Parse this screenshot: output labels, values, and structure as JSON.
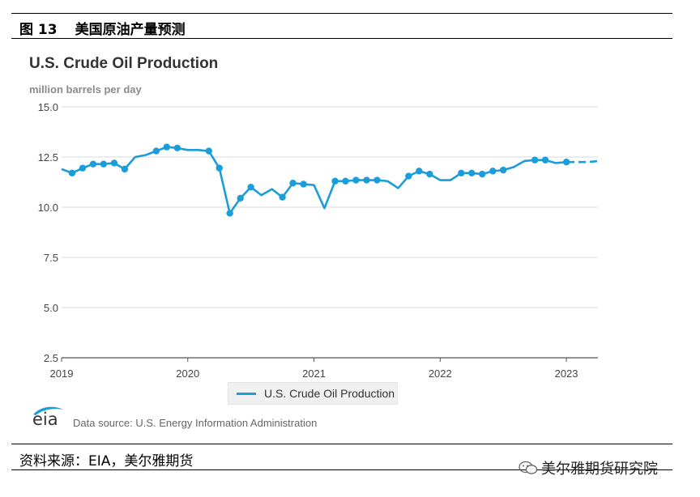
{
  "figure": {
    "number": "图 13",
    "title": "美国原油产量预测"
  },
  "chart_data": {
    "type": "line",
    "title": "U.S. Crude Oil Production",
    "subtitle": "million barrels per day",
    "ylim": [
      2.5,
      15.0
    ],
    "yticks": [
      "2.5",
      "5.0",
      "7.5",
      "10.0",
      "12.5",
      "15.0"
    ],
    "ytick_values": [
      2.5,
      5.0,
      7.5,
      10.0,
      12.5,
      15.0
    ],
    "xticks": [
      "2019",
      "2020",
      "2021",
      "2022",
      "2023"
    ],
    "xtick_values": [
      2019,
      2020,
      2021,
      2022,
      2023
    ],
    "xlim": [
      2019,
      2023.25
    ],
    "grid": true,
    "legend_position": "bottom-center",
    "colors": {
      "series": "#1a9dd9",
      "grid": "#d9d9d9",
      "axis": "#555555"
    },
    "forecast_start": 2022.917,
    "series": [
      {
        "name": "U.S. Crude Oil Production",
        "x": [
          2019.0,
          2019.083,
          2019.167,
          2019.25,
          2019.333,
          2019.417,
          2019.5,
          2019.583,
          2019.667,
          2019.75,
          2019.833,
          2019.917,
          2020.0,
          2020.083,
          2020.167,
          2020.25,
          2020.333,
          2020.417,
          2020.5,
          2020.583,
          2020.667,
          2020.75,
          2020.833,
          2020.917,
          2021.0,
          2021.083,
          2021.167,
          2021.25,
          2021.333,
          2021.417,
          2021.5,
          2021.583,
          2021.667,
          2021.75,
          2021.833,
          2021.917,
          2022.0,
          2022.083,
          2022.167,
          2022.25,
          2022.333,
          2022.417,
          2022.5,
          2022.583,
          2022.667,
          2022.75,
          2022.833,
          2022.917,
          2023.0,
          2023.083,
          2023.167,
          2023.25
        ],
        "y": [
          11.9,
          11.7,
          11.95,
          12.15,
          12.15,
          12.2,
          11.9,
          12.5,
          12.6,
          12.8,
          13.0,
          12.95,
          12.85,
          12.85,
          12.8,
          11.95,
          9.7,
          10.45,
          11.0,
          10.6,
          10.9,
          10.5,
          11.2,
          11.15,
          11.1,
          9.95,
          11.3,
          11.3,
          11.35,
          11.35,
          11.35,
          11.3,
          10.95,
          11.55,
          11.8,
          11.65,
          11.35,
          11.35,
          11.7,
          11.7,
          11.65,
          11.8,
          11.85,
          12.0,
          12.3,
          12.35,
          12.35,
          12.2,
          12.25,
          12.25,
          12.25,
          12.3
        ],
        "markers_at": [
          2019.083,
          2019.167,
          2019.25,
          2019.333,
          2019.417,
          2019.5,
          2019.75,
          2019.833,
          2019.917,
          2020.167,
          2020.25,
          2020.333,
          2020.417,
          2020.5,
          2020.75,
          2020.833,
          2020.917,
          2021.167,
          2021.25,
          2021.333,
          2021.417,
          2021.5,
          2021.75,
          2021.833,
          2021.917,
          2022.167,
          2022.25,
          2022.333,
          2022.417,
          2022.5,
          2022.75,
          2022.833,
          2023.0
        ]
      }
    ]
  },
  "legend": {
    "label": "U.S. Crude Oil Production"
  },
  "logo": {
    "text": "eia"
  },
  "data_source": "Data source: U.S. Energy Information Administration",
  "footer": {
    "source": "资料来源：EIA，美尔雅期货",
    "watermark": "美尔雅期货研究院"
  }
}
